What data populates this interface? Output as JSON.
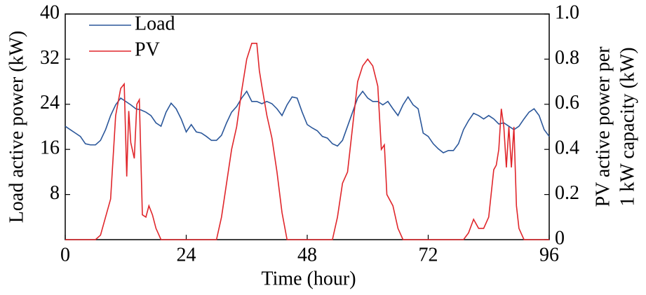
{
  "chart_data": {
    "type": "line",
    "xlabel": "Time (hour)",
    "ylabel": "Load active power (kW)",
    "y2label": [
      "PV active power per",
      "1 kW capacity (kW)"
    ],
    "xlim": [
      0,
      96
    ],
    "xticks": [
      0,
      24,
      48,
      72,
      96
    ],
    "ylim": [
      0,
      40
    ],
    "yticks": [
      8,
      16,
      24,
      32,
      40
    ],
    "y2lim": [
      0,
      1
    ],
    "y2ticks": [
      0,
      0.2,
      0.4,
      0.6,
      0.8,
      {
        "value": 1,
        "label": "1.0"
      }
    ],
    "legend": "upper left",
    "x": [
      0,
      1,
      2,
      3,
      4,
      5,
      6,
      7,
      8,
      9,
      10,
      11,
      12,
      13,
      14,
      15,
      16,
      17,
      18,
      19,
      20,
      21,
      22,
      23,
      24,
      25,
      26,
      27,
      28,
      29,
      30,
      31,
      32,
      33,
      34,
      35,
      36,
      37,
      38,
      39,
      40,
      41,
      42,
      43,
      44,
      45,
      46,
      47,
      48,
      49,
      50,
      51,
      52,
      53,
      54,
      55,
      56,
      57,
      58,
      59,
      60,
      61,
      62,
      63,
      64,
      65,
      66,
      67,
      68,
      69,
      70,
      71,
      72,
      73,
      74,
      75,
      76,
      77,
      78,
      79,
      80,
      81,
      82,
      83,
      84,
      85,
      86,
      87,
      88,
      89,
      90,
      91,
      92,
      93,
      94,
      95,
      96
    ],
    "series": [
      {
        "name": "Load",
        "color": "#2b579a",
        "values": [
          20.1,
          19.5,
          18.9,
          18.3,
          17,
          16.8,
          16.8,
          17.6,
          19.5,
          22,
          23.9,
          25.1,
          24.5,
          23.9,
          23.2,
          23,
          22.6,
          22,
          20.7,
          20.1,
          22.6,
          24.2,
          23.2,
          21.4,
          19.1,
          20.4,
          19.1,
          18.9,
          18.3,
          17.6,
          17.6,
          18.5,
          20.7,
          22.6,
          23.6,
          25.1,
          26.3,
          24.5,
          24.5,
          24.1,
          24.5,
          24.1,
          23.2,
          22,
          23.9,
          25.3,
          25.1,
          22.6,
          20.4,
          19.8,
          19.3,
          18.3,
          18,
          17,
          16.6,
          17.6,
          20.1,
          22.6,
          25.1,
          26.3,
          25.1,
          24.5,
          24.5,
          23.9,
          24.5,
          23.2,
          22,
          23.9,
          25.3,
          23.9,
          23.2,
          18.9,
          18.3,
          17,
          16.1,
          15.4,
          15.8,
          15.8,
          17,
          19.5,
          21.1,
          22.4,
          22,
          21.4,
          22,
          21.4,
          20.5,
          20.7,
          20.1,
          19.5,
          20.1,
          21.4,
          22.6,
          23.2,
          22,
          19.5,
          18.3
        ]
      },
      {
        "name": "PV",
        "color": "#e0262b",
        "axis": "y2",
        "x": [
          0,
          6,
          7,
          8,
          9,
          10,
          11,
          11.7,
          12.2,
          12.6,
          13,
          13.7,
          14.2,
          14.7,
          15.3,
          16,
          16.6,
          17.3,
          18,
          19,
          30,
          31,
          32,
          33,
          34,
          35,
          36,
          37,
          38,
          38.5,
          39,
          40,
          41,
          42,
          43,
          44,
          53,
          54,
          55,
          56,
          57,
          58,
          59,
          60,
          61,
          62,
          62.7,
          63.3,
          63.8,
          65,
          66,
          67,
          79,
          80,
          81,
          82,
          83,
          84,
          85,
          85.5,
          86,
          86.5,
          87,
          87.5,
          88,
          88.5,
          89,
          89.5,
          90,
          91,
          96
        ],
        "values": [
          0,
          0,
          0.02,
          0.1,
          0.18,
          0.55,
          0.67,
          0.69,
          0.28,
          0.57,
          0.43,
          0.36,
          0.6,
          0.62,
          0.11,
          0.1,
          0.15,
          0.11,
          0.05,
          0,
          0,
          0.1,
          0.25,
          0.4,
          0.5,
          0.66,
          0.8,
          0.87,
          0.87,
          0.75,
          0.68,
          0.55,
          0.45,
          0.3,
          0.12,
          0,
          0,
          0.1,
          0.25,
          0.3,
          0.5,
          0.7,
          0.77,
          0.8,
          0.77,
          0.68,
          0.4,
          0.42,
          0.2,
          0.15,
          0.05,
          0,
          0,
          0.03,
          0.09,
          0.05,
          0.05,
          0.1,
          0.31,
          0.33,
          0.4,
          0.58,
          0.5,
          0.32,
          0.5,
          0.32,
          0.5,
          0.15,
          0.05,
          0,
          0
        ]
      }
    ]
  }
}
